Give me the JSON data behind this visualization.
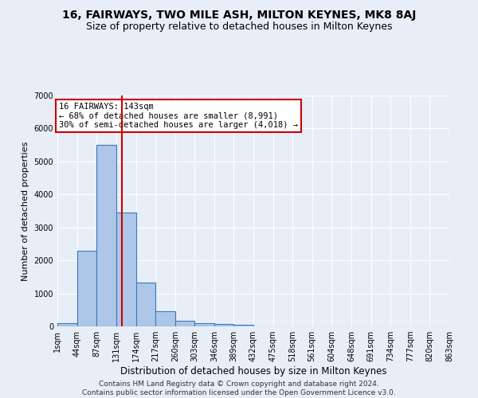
{
  "title": "16, FAIRWAYS, TWO MILE ASH, MILTON KEYNES, MK8 8AJ",
  "subtitle": "Size of property relative to detached houses in Milton Keynes",
  "xlabel": "Distribution of detached houses by size in Milton Keynes",
  "ylabel": "Number of detached properties",
  "footer_line1": "Contains HM Land Registry data © Crown copyright and database right 2024.",
  "footer_line2": "Contains public sector information licensed under the Open Government Licence v3.0.",
  "bin_edges": [
    1,
    44,
    87,
    131,
    174,
    217,
    260,
    303,
    346,
    389,
    432,
    475,
    518,
    561,
    604,
    648,
    691,
    734,
    777,
    820,
    863
  ],
  "bar_heights": [
    100,
    2300,
    5500,
    3450,
    1320,
    470,
    160,
    100,
    70,
    50,
    0,
    0,
    0,
    0,
    0,
    0,
    0,
    0,
    0,
    0
  ],
  "bar_color": "#aec6e8",
  "bar_edge_color": "#3a7ab8",
  "bar_edge_width": 0.8,
  "red_line_x": 143,
  "red_line_color": "#cc0000",
  "annotation_text": "16 FAIRWAYS: 143sqm\n← 68% of detached houses are smaller (8,991)\n30% of semi-detached houses are larger (4,018) →",
  "annotation_box_color": "white",
  "annotation_box_edge_color": "#cc0000",
  "annotation_fontsize": 7.5,
  "ylim": [
    0,
    7000
  ],
  "yticks": [
    0,
    1000,
    2000,
    3000,
    4000,
    5000,
    6000,
    7000
  ],
  "background_color": "#e8eef8",
  "title_fontsize": 10,
  "subtitle_fontsize": 9,
  "xlabel_fontsize": 8.5,
  "ylabel_fontsize": 8,
  "tick_fontsize": 7,
  "footer_fontsize": 6.5
}
